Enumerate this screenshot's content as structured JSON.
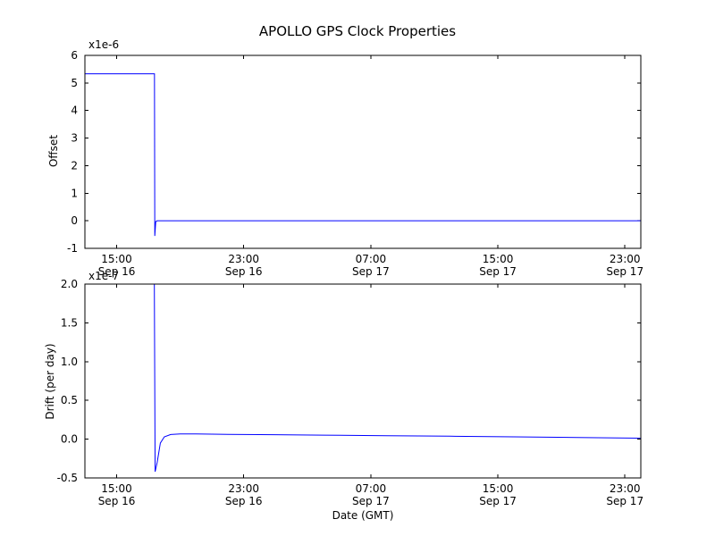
{
  "figure": {
    "title": "APOLLO GPS Clock Properties",
    "background": "#ffffff",
    "line_color": "#0000ff"
  },
  "chart_data": [
    {
      "type": "line",
      "name": "offset",
      "title": "APOLLO GPS Clock Properties",
      "ylabel": "Offset",
      "xlabel": "",
      "offset_text": "x1e-6",
      "y_unit": "1e-6",
      "x_unit": "hours since Sep 16 00:00 GMT",
      "xlim": [
        13,
        48
      ],
      "ylim": [
        -1,
        6
      ],
      "grid": false,
      "legend": "none",
      "yticks": [
        -1,
        0,
        1,
        2,
        3,
        4,
        5,
        6
      ],
      "ytick_labels": [
        "-1",
        "0",
        "1",
        "2",
        "3",
        "4",
        "5",
        "6"
      ],
      "xticks": [
        15,
        23,
        31,
        39,
        47
      ],
      "xtick_labels": [
        [
          "15:00",
          "Sep 16"
        ],
        [
          "23:00",
          "Sep 16"
        ],
        [
          "07:00",
          "Sep 17"
        ],
        [
          "15:00",
          "Sep 17"
        ],
        [
          "23:00",
          "Sep 17"
        ]
      ],
      "line_color": "#0000ff",
      "series": [
        {
          "name": "offset",
          "x": [
            13.0,
            17.3,
            17.38,
            17.4,
            17.46,
            17.55,
            48.0
          ],
          "y": [
            5.33,
            5.33,
            5.33,
            -0.55,
            -0.03,
            0.0,
            0.0
          ]
        }
      ]
    },
    {
      "type": "line",
      "name": "drift",
      "title": "",
      "ylabel": "Drift (per day)",
      "xlabel": "Date (GMT)",
      "offset_text": "x1e-7",
      "y_unit": "1e-7",
      "x_unit": "hours since Sep 16 00:00 GMT",
      "xlim": [
        13,
        48
      ],
      "ylim": [
        -0.5,
        2.0
      ],
      "grid": false,
      "legend": "none",
      "yticks": [
        -0.5,
        0.0,
        0.5,
        1.0,
        1.5,
        2.0
      ],
      "ytick_labels": [
        "-0.5",
        "0.0",
        "0.5",
        "1.0",
        "1.5",
        "2.0"
      ],
      "xticks": [
        15,
        23,
        31,
        39,
        47
      ],
      "xtick_labels": [
        [
          "15:00",
          "Sep 16"
        ],
        [
          "23:00",
          "Sep 16"
        ],
        [
          "07:00",
          "Sep 17"
        ],
        [
          "15:00",
          "Sep 17"
        ],
        [
          "23:00",
          "Sep 17"
        ]
      ],
      "line_color": "#0000ff",
      "series": [
        {
          "name": "drift",
          "x": [
            13.0,
            17.3,
            17.36,
            17.42,
            17.55,
            17.75,
            18.0,
            18.4,
            19.0,
            20.0,
            22.0,
            25.0,
            28.0,
            32.0,
            36.0,
            40.0,
            44.0,
            48.0
          ],
          "y": [
            9.0,
            9.0,
            2.6,
            -0.42,
            -0.3,
            -0.05,
            0.03,
            0.06,
            0.068,
            0.067,
            0.062,
            0.057,
            0.052,
            0.045,
            0.038,
            0.03,
            0.022,
            0.012
          ]
        }
      ]
    }
  ]
}
